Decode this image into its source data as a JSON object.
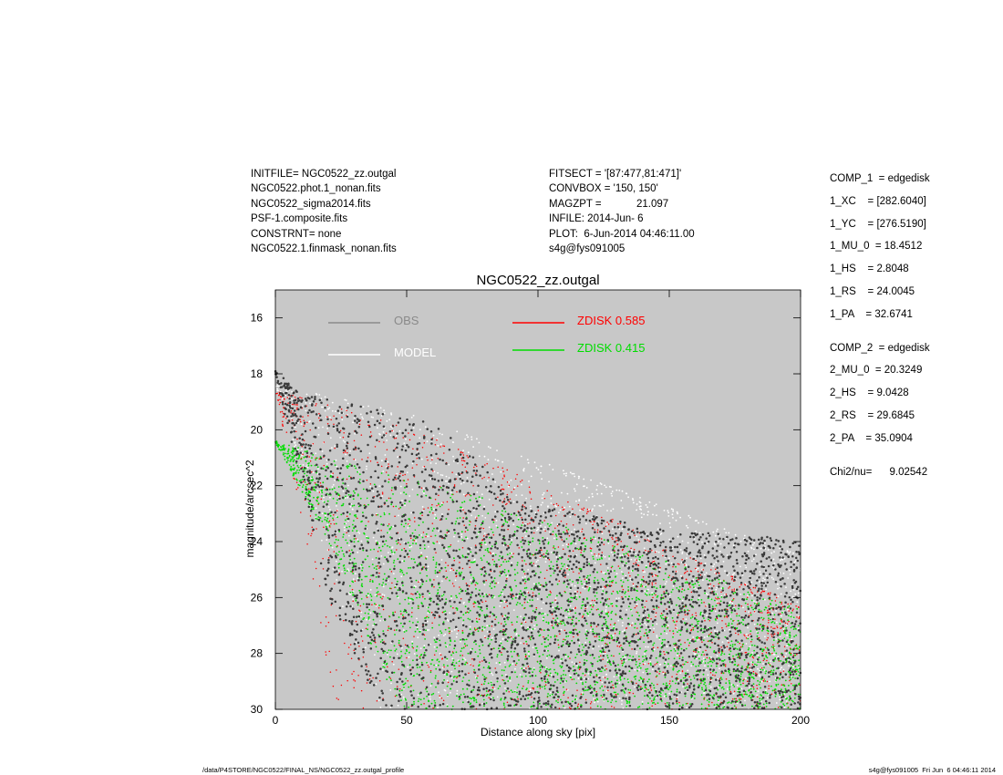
{
  "header": {
    "left": [
      "INITFILE= NGC0522_zz.outgal",
      "NGC0522.phot.1_nonan.fits",
      "NGC0522_sigma2014.fits",
      "PSF-1.composite.fits",
      "CONSTRNT= none",
      "NGC0522.1.finmask_nonan.fits"
    ],
    "middle": [
      "FITSECT = '[87:477,81:471]'",
      "CONVBOX = '150, 150'",
      "MAGZPT =            21.097",
      "INFILE: 2014-Jun- 6",
      "PLOT:  6-Jun-2014 04:46:11.00",
      "s4g@fys091005"
    ]
  },
  "params": {
    "comp1": [
      "COMP_1  = edgedisk",
      "1_XC    = [282.6040]",
      "1_YC    = [276.5190]",
      "1_MU_0  = 18.4512",
      "1_HS    = 2.8048",
      "1_RS    = 24.0045",
      "1_PA    = 32.6741"
    ],
    "comp2": [
      "COMP_2  = edgedisk",
      "2_MU_0  = 20.3249",
      "2_HS    = 9.0428",
      "2_RS    = 29.6845",
      "2_PA    = 35.0904"
    ],
    "chi2": "Chi2/nu=      9.02542"
  },
  "footer": {
    "left": "/data/P4STORE/NGC0522/FINAL_NS/NGC0522_zz.outgal_profile",
    "right": "s4g@fys091005  Fri Jun  6 04:46:11 2014"
  },
  "colors": {
    "plot_bg": "#c8c8c8",
    "obs": "#3a3a3a",
    "obs_legend": "#8a8a8a",
    "model": "#ffffff",
    "zdisk1": "#ff0000",
    "zdisk2": "#00dd00"
  },
  "chart_data": {
    "type": "scatter",
    "title": "NGC0522_zz.outgal",
    "xlabel": "Distance along sky [pix]",
    "ylabel": "magnitude/arcsec^2",
    "xlim": [
      0,
      200
    ],
    "ylim": [
      30,
      15
    ],
    "y_inverted": true,
    "x_ticks": [
      0,
      50,
      100,
      150,
      200
    ],
    "y_ticks": [
      16,
      18,
      20,
      22,
      24,
      26,
      28,
      30
    ],
    "legend": [
      {
        "label": "OBS",
        "color": "#8a8a8a"
      },
      {
        "label": "MODEL",
        "color": "#ffffff"
      },
      {
        "label": "ZDISK  0.585",
        "color": "#ff0000"
      },
      {
        "label": "ZDISK  0.415",
        "color": "#00dd00"
      }
    ],
    "series": [
      {
        "name": "OBS",
        "description": "observed profile points",
        "upper_envelope": [
          [
            0,
            17.9
          ],
          [
            10,
            18.7
          ],
          [
            30,
            19.1
          ],
          [
            45,
            19.4
          ],
          [
            60,
            19.8
          ],
          [
            75,
            20.9
          ],
          [
            90,
            22.5
          ],
          [
            150,
            23.6
          ],
          [
            200,
            23.9
          ]
        ],
        "lower_envelope": [
          [
            0,
            18.0
          ],
          [
            20,
            26
          ],
          [
            35,
            29
          ],
          [
            40,
            30
          ],
          [
            200,
            30
          ]
        ]
      },
      {
        "name": "MODEL",
        "description": "total model points",
        "upper_envelope": [
          [
            0,
            18.4
          ],
          [
            50,
            19.4
          ],
          [
            100,
            21.1
          ],
          [
            150,
            22.8
          ],
          [
            200,
            24.5
          ]
        ],
        "lower_envelope": [
          [
            0,
            18.5
          ],
          [
            20,
            25
          ],
          [
            35,
            29
          ],
          [
            40,
            30
          ],
          [
            200,
            30
          ]
        ]
      },
      {
        "name": "ZDISK  0.585",
        "upper_envelope": [
          [
            0,
            18.6
          ],
          [
            50,
            19.9
          ],
          [
            100,
            21.9
          ],
          [
            150,
            24.2
          ],
          [
            200,
            26.3
          ]
        ],
        "lower_envelope": [
          [
            0,
            18.7
          ],
          [
            12,
            24
          ],
          [
            22,
            30
          ],
          [
            200,
            30
          ]
        ]
      },
      {
        "name": "ZDISK  0.415",
        "upper_envelope": [
          [
            0,
            20.4
          ],
          [
            50,
            21.6
          ],
          [
            100,
            23.0
          ],
          [
            150,
            24.7
          ],
          [
            200,
            26.4
          ]
        ],
        "lower_envelope": [
          [
            0,
            20.45
          ],
          [
            20,
            24
          ],
          [
            35,
            27.5
          ],
          [
            48,
            30
          ],
          [
            200,
            30
          ]
        ]
      }
    ]
  }
}
